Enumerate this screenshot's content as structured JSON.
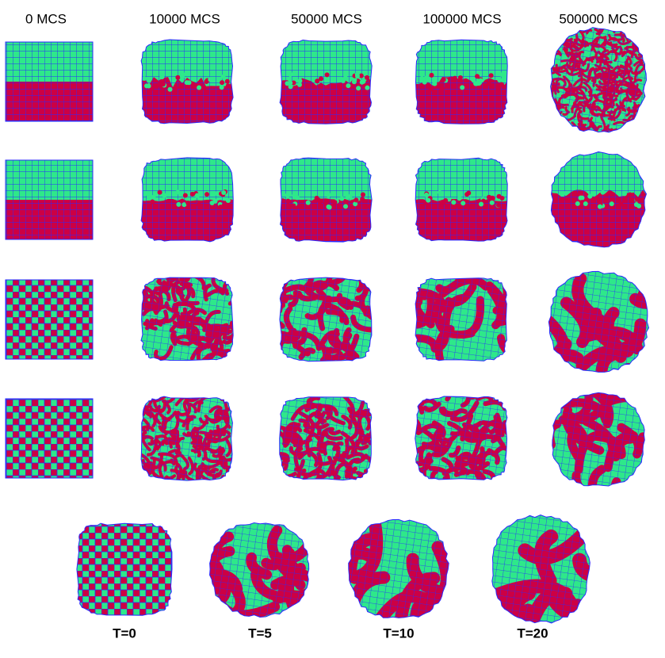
{
  "columns": [
    "0 MCS",
    "10000 MCS",
    "50000 MCS",
    "100000 MCS",
    "500000 MCS"
  ],
  "bottom_labels": [
    "T=0",
    "T=5",
    "T=10",
    "T=20"
  ]
}
